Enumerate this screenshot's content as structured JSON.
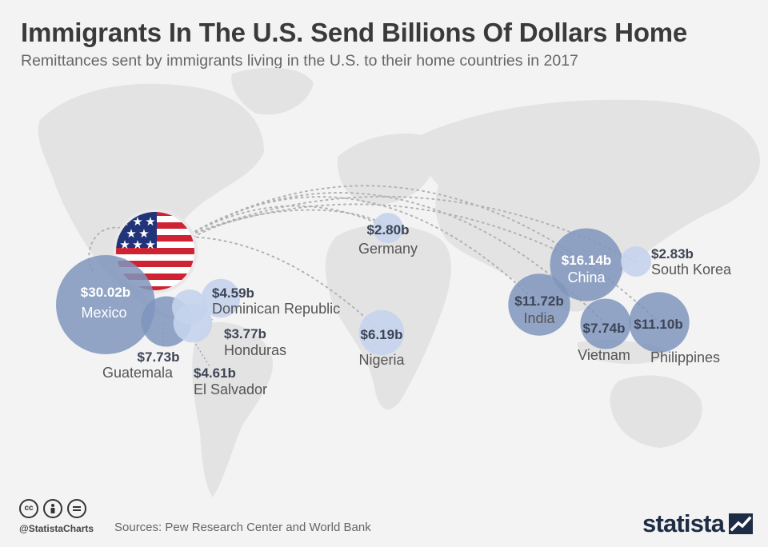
{
  "header": {
    "title": "Immigrants In The U.S. Send Billions Of Dollars Home",
    "subtitle": "Remittances sent by immigrants living in the U.S. to their home countries in 2017"
  },
  "chart_data": {
    "type": "bubble-map",
    "unit": "billion USD",
    "origin": "United States",
    "series": [
      {
        "country": "Mexico",
        "label": "$30.02b",
        "value": 30.02
      },
      {
        "country": "China",
        "label": "$16.14b",
        "value": 16.14
      },
      {
        "country": "India",
        "label": "$11.72b",
        "value": 11.72
      },
      {
        "country": "Philippines",
        "label": "$11.10b",
        "value": 11.1
      },
      {
        "country": "Vietnam",
        "label": "$7.74b",
        "value": 7.74
      },
      {
        "country": "Guatemala",
        "label": "$7.73b",
        "value": 7.73
      },
      {
        "country": "Nigeria",
        "label": "$6.19b",
        "value": 6.19
      },
      {
        "country": "El Salvador",
        "label": "$4.61b",
        "value": 4.61
      },
      {
        "country": "Dominican Republic",
        "label": "$4.59b",
        "value": 4.59
      },
      {
        "country": "Honduras",
        "label": "$3.77b",
        "value": 3.77
      },
      {
        "country": "South Korea",
        "label": "$2.83b",
        "value": 2.83
      },
      {
        "country": "Germany",
        "label": "$2.80b",
        "value": 2.8
      }
    ]
  },
  "footer": {
    "handle": "@StatistaCharts",
    "source": "Sources: Pew Research Center and World Bank",
    "logo": "statista"
  },
  "colors": {
    "bubble": "#7f95bd",
    "bubble_light": "#c4d3ec",
    "label_dark": "#3d4455",
    "land": "#e3e3e3",
    "flag_red": "#cf2233",
    "flag_blue": "#21347a"
  }
}
